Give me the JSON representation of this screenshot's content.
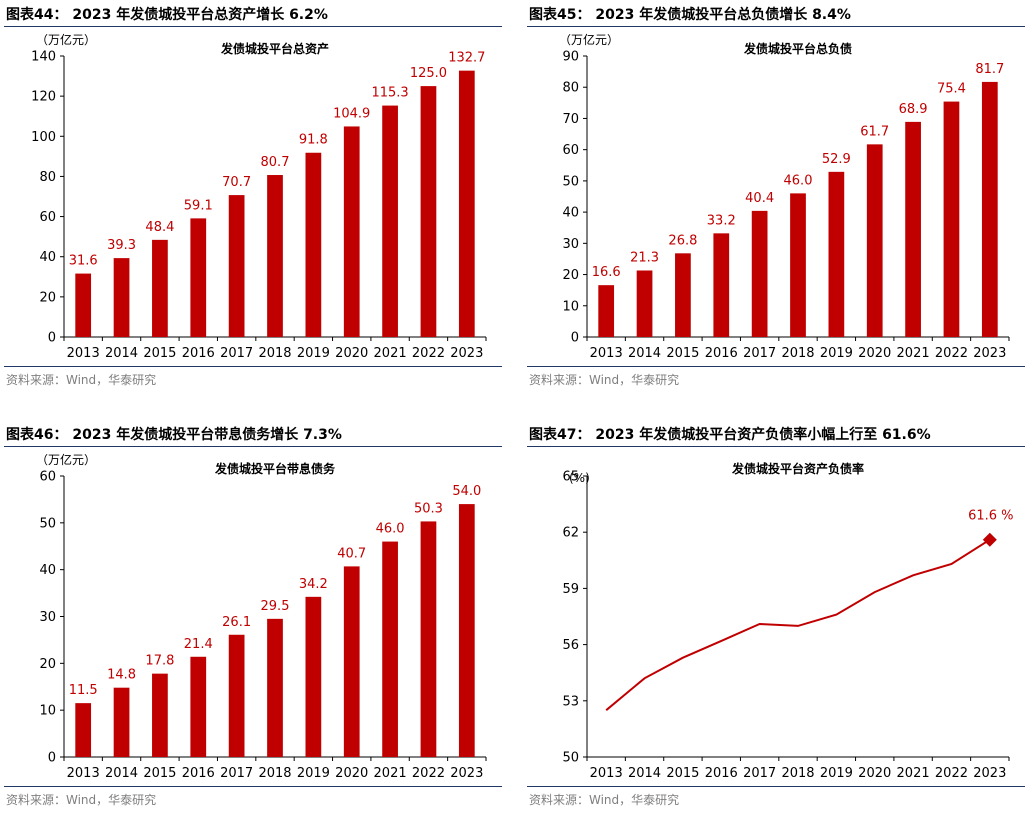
{
  "panels": [
    {
      "fig_title": "图表44：  2023 年发债城投平台总资产增长 6.2%",
      "source": "资料来源：Wind，华泰研究",
      "chart_data": {
        "type": "bar",
        "title": "发债城投平台总资产",
        "unit": "（万亿元）",
        "categories": [
          "2013",
          "2014",
          "2015",
          "2016",
          "2017",
          "2018",
          "2019",
          "2020",
          "2021",
          "2022",
          "2023"
        ],
        "values": [
          31.6,
          39.3,
          48.4,
          59.1,
          70.7,
          80.7,
          91.8,
          104.9,
          115.3,
          125.0,
          132.7
        ],
        "labels": [
          "31.6",
          "39.3",
          "48.4",
          "59.1",
          "70.7",
          "80.7",
          "91.8",
          "104.9",
          "115.3",
          "125.0",
          "132.7"
        ],
        "ylim": [
          0,
          140
        ],
        "yticks": [
          0,
          20,
          40,
          60,
          80,
          100,
          120,
          140
        ],
        "color": "#c00000"
      }
    },
    {
      "fig_title": "图表45：  2023 年发债城投平台总负债增长 8.4%",
      "source": "资料来源：Wind，华泰研究",
      "chart_data": {
        "type": "bar",
        "title": "发债城投平台总负债",
        "unit": "（万亿元）",
        "categories": [
          "2013",
          "2014",
          "2015",
          "2016",
          "2017",
          "2018",
          "2019",
          "2020",
          "2021",
          "2022",
          "2023"
        ],
        "values": [
          16.6,
          21.3,
          26.8,
          33.2,
          40.4,
          46.0,
          52.9,
          61.7,
          68.9,
          75.4,
          81.7
        ],
        "labels": [
          "16.6",
          "21.3",
          "26.8",
          "33.2",
          "40.4",
          "46.0",
          "52.9",
          "61.7",
          "68.9",
          "75.4",
          "81.7"
        ],
        "ylim": [
          0,
          90
        ],
        "yticks": [
          0,
          10,
          20,
          30,
          40,
          50,
          60,
          70,
          80,
          90
        ],
        "color": "#c00000"
      }
    },
    {
      "fig_title": "图表46：  2023 年发债城投平台带息债务增长 7.3%",
      "source": "资料来源：Wind，华泰研究",
      "chart_data": {
        "type": "bar",
        "title": "发债城投平台带息债务",
        "unit": "（万亿元）",
        "categories": [
          "2013",
          "2014",
          "2015",
          "2016",
          "2017",
          "2018",
          "2019",
          "2020",
          "2021",
          "2022",
          "2023"
        ],
        "values": [
          11.5,
          14.8,
          17.8,
          21.4,
          26.1,
          29.5,
          34.2,
          40.7,
          46.0,
          50.3,
          54.0
        ],
        "labels": [
          "11.5",
          "14.8",
          "17.8",
          "21.4",
          "26.1",
          "29.5",
          "34.2",
          "40.7",
          "46.0",
          "50.3",
          "54.0"
        ],
        "ylim": [
          0,
          60
        ],
        "yticks": [
          0,
          10,
          20,
          30,
          40,
          50,
          60
        ],
        "color": "#c00000"
      }
    },
    {
      "fig_title": "图表47：  2023 年发债城投平台资产负债率小幅上行至 61.6%",
      "source": "资料来源：Wind，华泰研究",
      "chart_data": {
        "type": "line",
        "title": "发债城投平台资产负债率",
        "unit": "(%)",
        "categories": [
          "2013",
          "2014",
          "2015",
          "2016",
          "2017",
          "2018",
          "2019",
          "2020",
          "2021",
          "2022",
          "2023"
        ],
        "values": [
          52.5,
          54.2,
          55.3,
          56.2,
          57.1,
          57.0,
          57.6,
          58.8,
          59.7,
          60.3,
          61.6
        ],
        "end_label": "61.6 %",
        "ylim": [
          50,
          65
        ],
        "yticks": [
          50,
          53,
          56,
          59,
          62,
          65
        ],
        "color": "#c00000"
      }
    }
  ]
}
